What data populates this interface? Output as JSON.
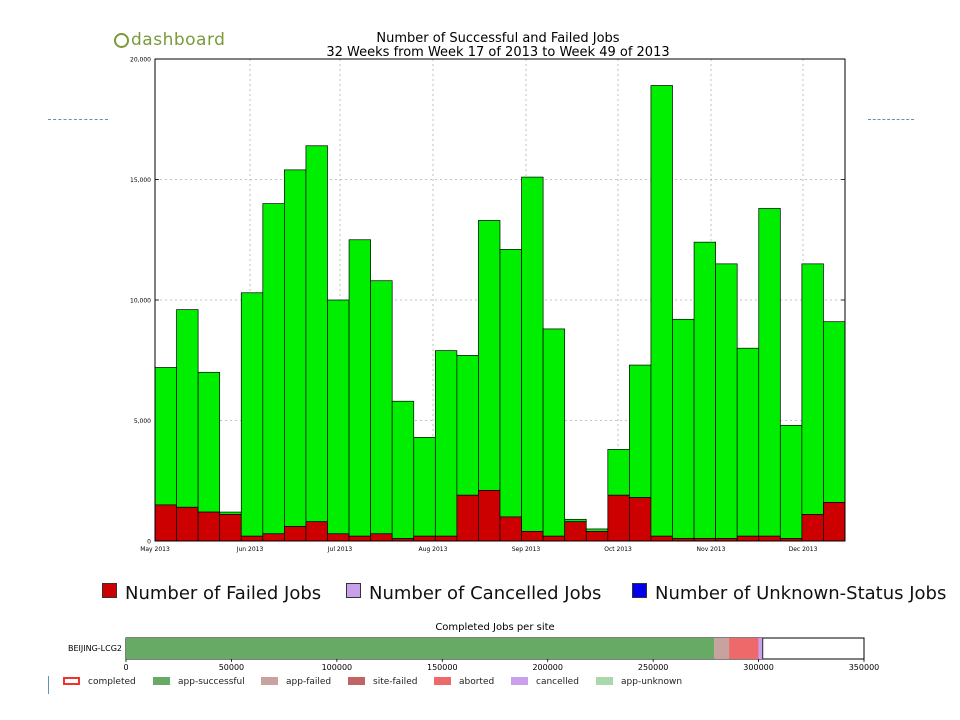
{
  "logo": {
    "text": "dashboard"
  },
  "chart_data": [
    {
      "type": "bar",
      "stacked": true,
      "title": "Number of Successful and Failed Jobs",
      "subtitle": "32 Weeks from Week 17 of 2013 to Week 49 of 2013",
      "ylim": [
        0,
        20000
      ],
      "yticks": [
        "0",
        "5,000",
        "10,000",
        "15,000",
        "20,000"
      ],
      "xticks": [
        "May 2013",
        "Jun 2013",
        "Jul 2013",
        "Aug 2013",
        "Sep 2013",
        "Oct 2013",
        "Nov 2013",
        "Dec 2013"
      ],
      "grid": true,
      "colors": {
        "successful": "#00ee00",
        "failed": "#cc0000",
        "cancelled": "#c8a0ee",
        "unknown": "#0000ee"
      },
      "series": [
        {
          "name": "Successful",
          "values": [
            5700,
            8200,
            5800,
            100,
            10100,
            13700,
            14800,
            15600,
            9700,
            12300,
            10500,
            5700,
            4100,
            7700,
            5800,
            11200,
            11100,
            14700,
            8600,
            100,
            100,
            1900,
            5500,
            18700,
            9100,
            12300,
            11400,
            7800,
            13600,
            4700,
            10400,
            7500
          ]
        },
        {
          "name": "Number of Failed Jobs",
          "values": [
            1500,
            1400,
            1200,
            1100,
            200,
            300,
            600,
            800,
            300,
            200,
            300,
            100,
            200,
            200,
            1900,
            2100,
            1000,
            400,
            200,
            800,
            400,
            1900,
            1800,
            200,
            100,
            100,
            100,
            200,
            200,
            100,
            1100,
            1600
          ]
        }
      ],
      "legend": [
        "Number of Failed Jobs",
        "Number of Cancelled Jobs",
        "Number of Unknown-Status Jobs"
      ]
    },
    {
      "type": "bar",
      "orientation": "horizontal",
      "title": "Completed Jobs per site",
      "categories": [
        "BEIJING-LCG2"
      ],
      "xlim": [
        0,
        350000
      ],
      "xticks": [
        "0",
        "50000",
        "100000",
        "150000",
        "200000",
        "250000",
        "300000",
        "350000"
      ],
      "series": [
        {
          "name": "app-successful",
          "value": 279000,
          "color": "#66aa66"
        },
        {
          "name": "app-failed",
          "value": 7000,
          "color": "#c8a29e"
        },
        {
          "name": "site-failed",
          "value": 0,
          "color": "#c06464"
        },
        {
          "name": "aborted",
          "value": 14000,
          "color": "#ee6a6a"
        },
        {
          "name": "cancelled",
          "value": 2000,
          "color": "#c8a0ee"
        },
        {
          "name": "app-unknown",
          "value": 0,
          "color": "#aad8aa"
        }
      ],
      "legend": [
        "completed",
        "app-successful",
        "app-failed",
        "site-failed",
        "aborted",
        "cancelled",
        "app-unknown"
      ],
      "legend_colors": [
        "#ffffff",
        "#66aa66",
        "#c8a29e",
        "#c06464",
        "#ee6a6a",
        "#c8a0ee",
        "#aad8aa"
      ]
    }
  ]
}
